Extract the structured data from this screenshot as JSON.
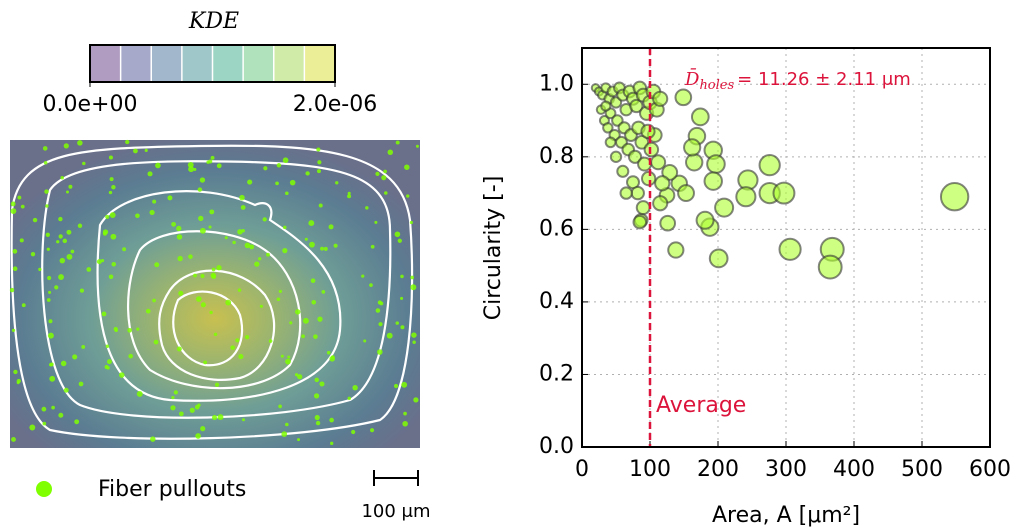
{
  "chart_data": [
    {
      "type": "kde-map",
      "colorbar_title": "KDE",
      "colorbar_lim": [
        0,
        2e-06
      ],
      "colorbar_ticks": [
        {
          "value": 0,
          "label": "0.0e+00"
        },
        {
          "value": 2e-06,
          "label": "2.0e-06"
        }
      ],
      "colors": [
        "#b09cc0",
        "#a7a9ca",
        "#a3b7cc",
        "#9fc6c8",
        "#9dd5c4",
        "#b0e2bb",
        "#d0eba8",
        "#eced97"
      ],
      "legend": {
        "name": "Fiber pullouts",
        "color": "#7fff00"
      },
      "scale_bar": "100 μm"
    },
    {
      "type": "scatter",
      "xlabel": "Area, A [μm²]",
      "ylabel": "Circularity [-]",
      "xlim": [
        0,
        600
      ],
      "ylim": [
        0,
        1.1
      ],
      "xticks": [
        0,
        100,
        200,
        300,
        400,
        500,
        600
      ],
      "yticks": [
        {
          "value": 0,
          "label": "0.0"
        },
        0.2,
        0.4,
        0.6,
        0.8,
        {
          "value": 1,
          "label": "1.0"
        }
      ],
      "grid": true,
      "vline": {
        "value": 100,
        "label": "Average",
        "color": "#dc143c"
      },
      "annotation": {
        "symbol": "D̄",
        "subscript": "holes",
        "text": "= 11.26 ± 2.11 μm"
      },
      "series": [
        {
          "color": "#adff2f",
          "x": [
            548,
            368,
            365,
            306,
            276,
            276,
            297,
            244,
            241,
            209,
            201,
            193,
            197,
            193,
            188,
            181,
            174,
            169,
            165,
            162,
            149,
            143,
            153,
            138,
            126,
            125,
            129,
            115,
            118,
            107,
            112,
            87,
            20,
            25,
            30,
            35,
            40,
            45,
            50,
            55,
            60,
            65,
            70,
            75,
            80,
            85,
            90,
            95,
            100,
            105,
            110,
            28,
            33,
            38,
            42,
            48,
            52,
            58,
            62,
            68,
            72,
            78,
            83,
            88,
            92,
            97,
            102,
            75,
            82,
            90,
            60,
            50,
            42,
            35,
            115,
            98,
            85,
            65
          ],
          "y": [
            0.69,
            0.545,
            0.496,
            0.545,
            0.777,
            0.7,
            0.7,
            0.736,
            0.69,
            0.66,
            0.52,
            0.818,
            0.78,
            0.733,
            0.606,
            0.625,
            0.91,
            0.857,
            0.785,
            0.826,
            0.964,
            0.727,
            0.7,
            0.543,
            0.617,
            0.694,
            0.757,
            0.672,
            0.727,
            0.86,
            0.785,
            0.625,
            0.99,
            0.98,
            0.97,
            0.99,
            0.96,
            0.98,
            0.95,
            0.99,
            0.97,
            0.93,
            0.98,
            0.96,
            0.94,
            0.99,
            0.97,
            0.92,
            0.95,
            0.98,
            0.93,
            0.93,
            0.9,
            0.88,
            0.92,
            0.86,
            0.9,
            0.84,
            0.88,
            0.82,
            0.86,
            0.8,
            0.88,
            0.84,
            0.78,
            0.87,
            0.82,
            0.73,
            0.7,
            0.66,
            0.76,
            0.8,
            0.84,
            0.94,
            0.96,
            0.74,
            0.62,
            0.7
          ]
        }
      ]
    }
  ]
}
